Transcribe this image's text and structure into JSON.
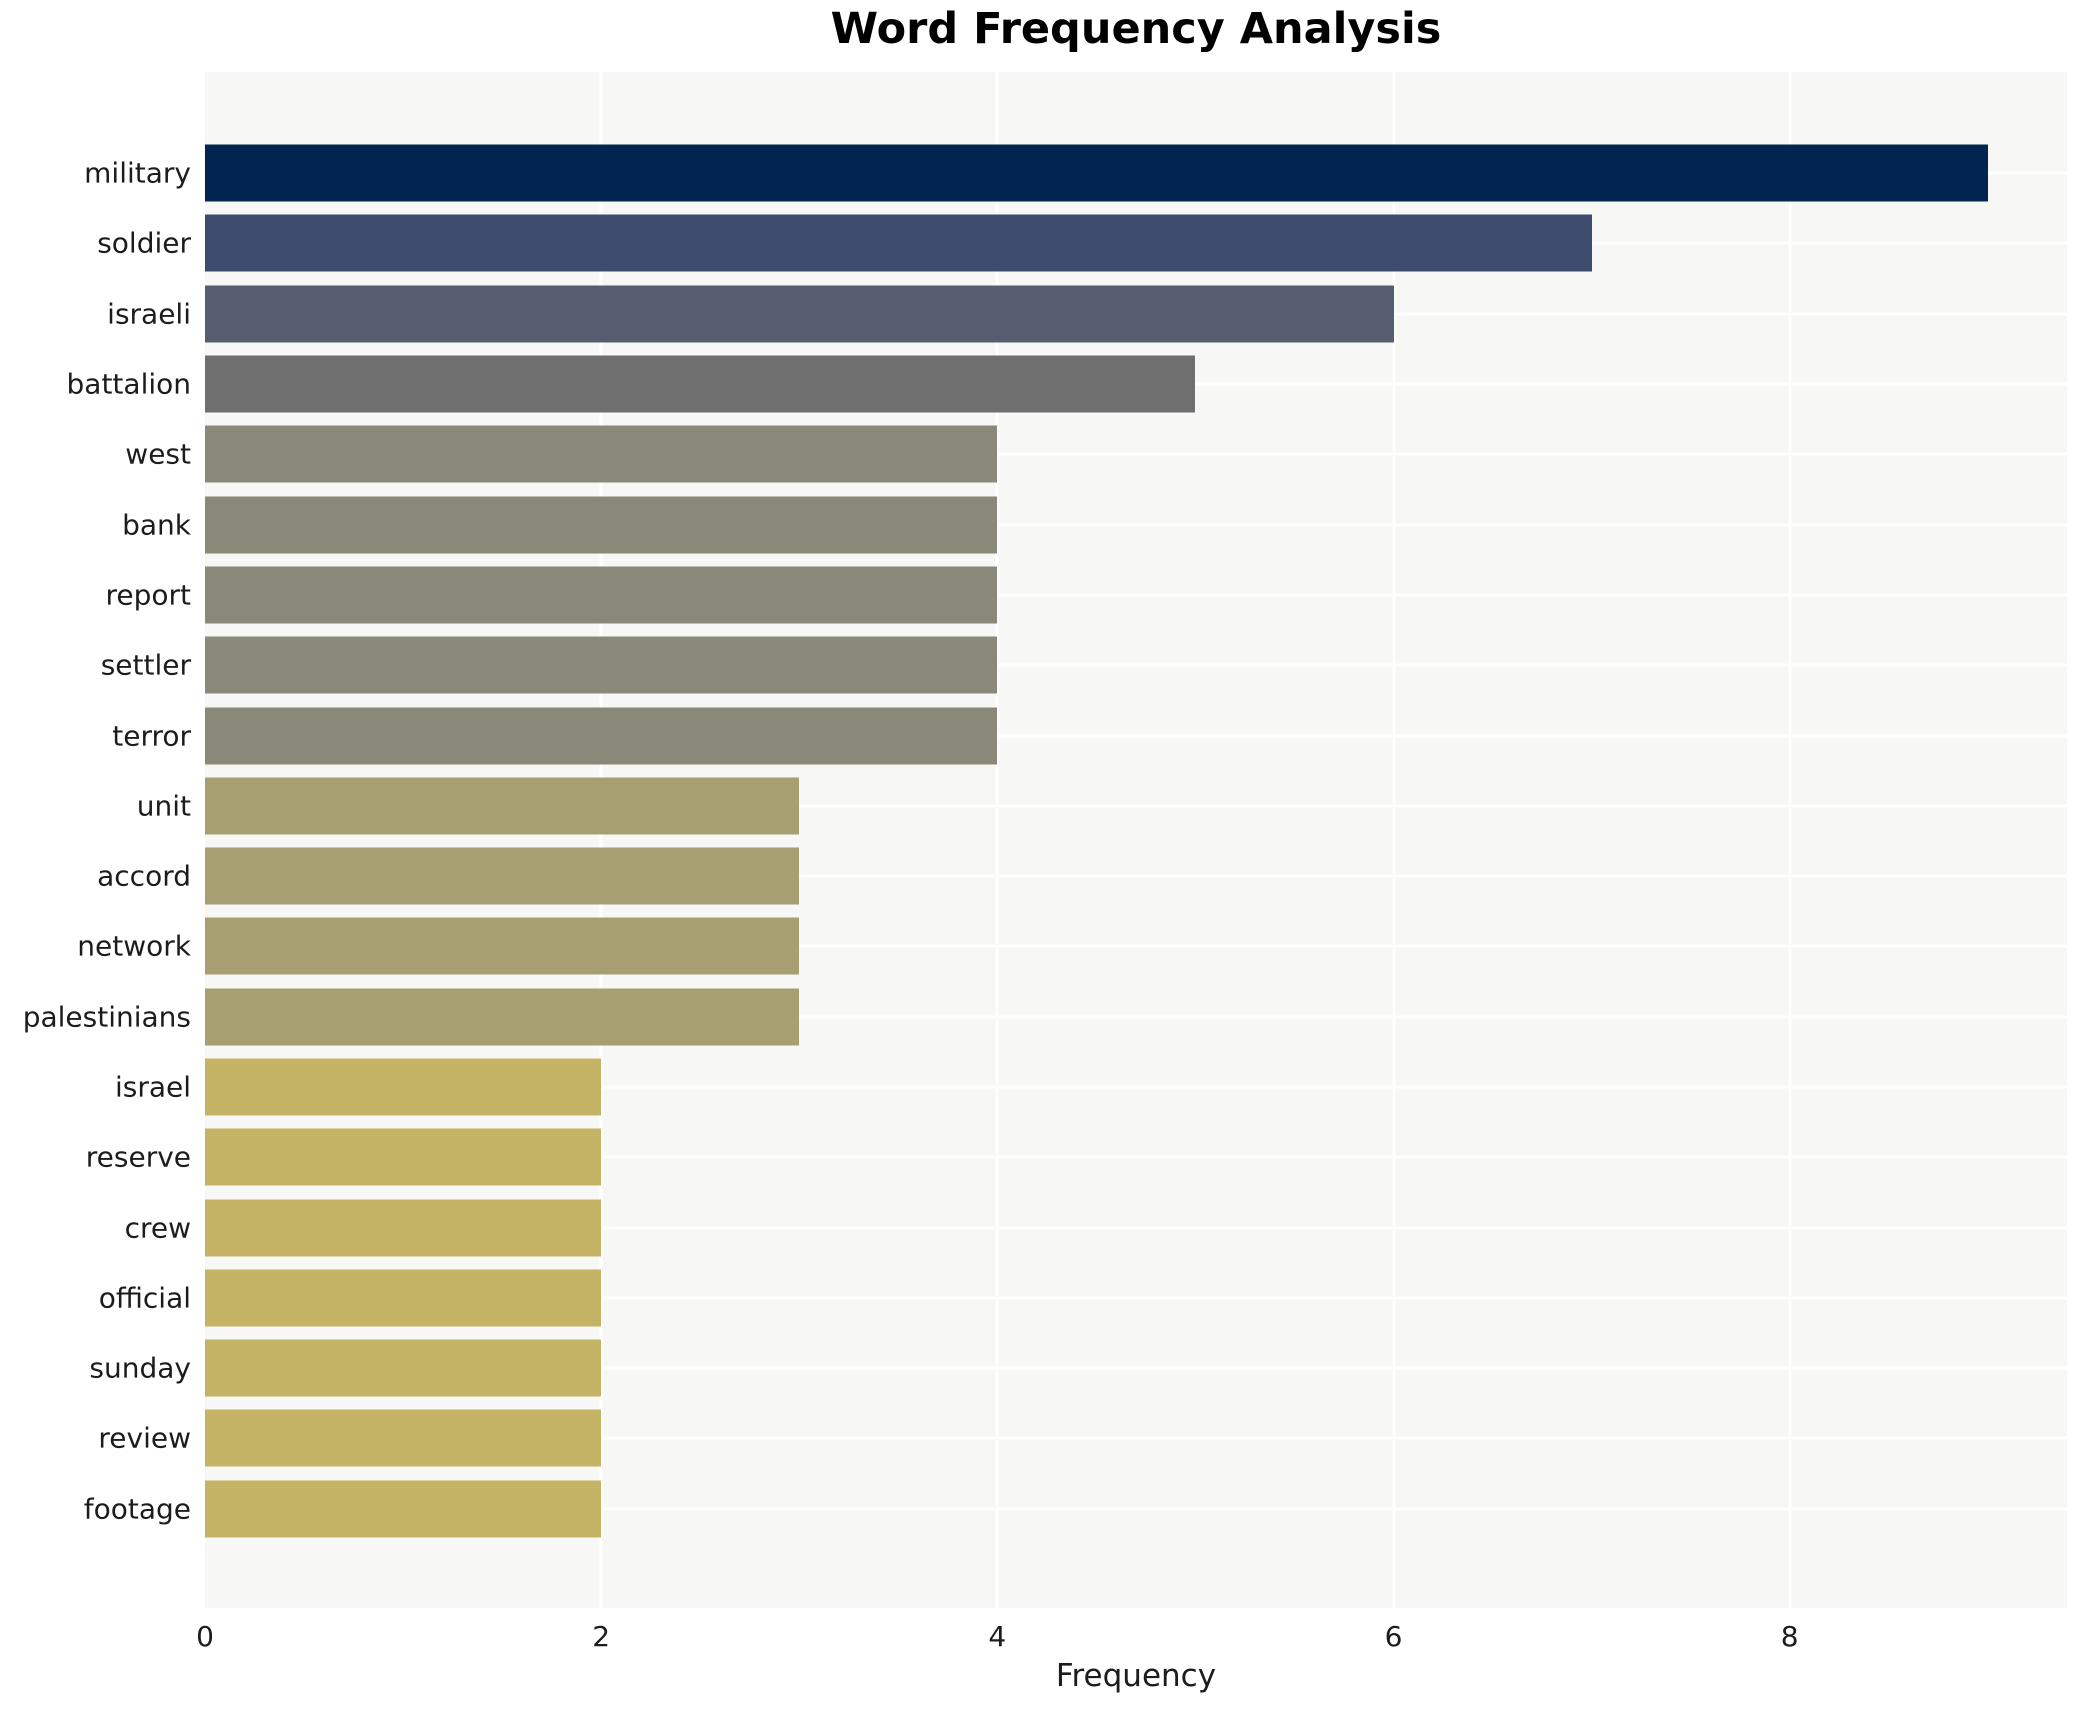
{
  "chart_data": {
    "type": "bar",
    "orientation": "horizontal",
    "title": "Word Frequency Analysis",
    "xlabel": "Frequency",
    "ylabel": "",
    "categories": [
      "military",
      "soldier",
      "israeli",
      "battalion",
      "west",
      "bank",
      "report",
      "settler",
      "terror",
      "unit",
      "accord",
      "network",
      "palestinians",
      "israel",
      "reserve",
      "crew",
      "official",
      "sunday",
      "review",
      "footage"
    ],
    "values": [
      9,
      7,
      6,
      5,
      4,
      4,
      4,
      4,
      4,
      3,
      3,
      3,
      3,
      2,
      2,
      2,
      2,
      2,
      2,
      2
    ],
    "bar_colors": [
      "#022450",
      "#3d4b6e",
      "#565d6e",
      "#6f6f70",
      "#8a8878",
      "#8a8878",
      "#8a8878",
      "#8a8878",
      "#8a8878",
      "#a79e71",
      "#a79e71",
      "#a79e71",
      "#a79e71",
      "#c4b364",
      "#c4b364",
      "#c4b364",
      "#c4b364",
      "#c4b364",
      "#c4b364",
      "#c4b364"
    ],
    "xticks": [
      0,
      2,
      4,
      6,
      8
    ],
    "xlim": [
      0,
      9.4
    ],
    "grid": true,
    "legend": false,
    "colors": {
      "plot_background": "#f7f7f5",
      "grid_line": "#ffffff",
      "text": "#1c1c1c",
      "title_text": "#000000",
      "figure_background": "#ffffff"
    }
  }
}
